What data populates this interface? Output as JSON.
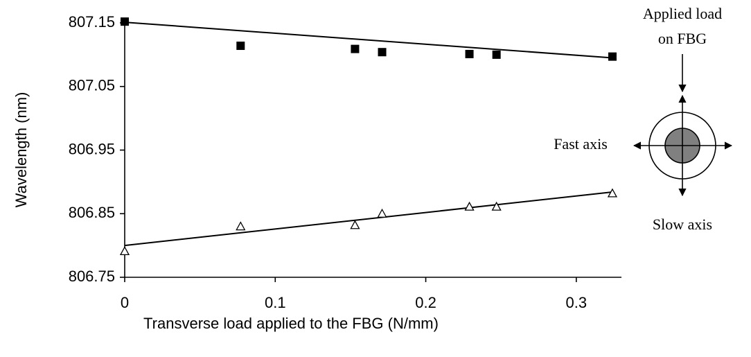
{
  "chart_data": {
    "type": "scatter",
    "x_label": "Transverse load applied to the FBG (N/mm)",
    "y_label": "Wavelength (nm)",
    "xlim": [
      0,
      0.33
    ],
    "xticks": [
      0,
      0.1,
      0.2,
      0.3
    ],
    "ylim": [
      806.75,
      807.15
    ],
    "yticks": [
      806.75,
      806.85,
      806.95,
      807.05,
      807.15
    ],
    "grid": false,
    "series": [
      {
        "marker": "square",
        "color": "#000000",
        "x": [
          0,
          0.077,
          0.153,
          0.171,
          0.229,
          0.247,
          0.324
        ],
        "values": [
          807.152,
          807.114,
          807.109,
          807.104,
          807.101,
          807.1,
          807.097
        ],
        "fit_x": [
          0,
          0.324
        ],
        "fit_values": [
          807.151,
          807.095
        ]
      },
      {
        "marker": "triangle",
        "color": "#000000",
        "x": [
          0,
          0.077,
          0.153,
          0.171,
          0.229,
          0.247,
          0.324
        ],
        "values": [
          806.791,
          806.83,
          806.832,
          806.85,
          806.861,
          806.861,
          806.882
        ],
        "fit_x": [
          0,
          0.324
        ],
        "fit_values": [
          806.8,
          806.884
        ]
      }
    ],
    "annotations": [
      "Applied load",
      "on FBG",
      "Fast axis",
      "Slow axis"
    ]
  }
}
